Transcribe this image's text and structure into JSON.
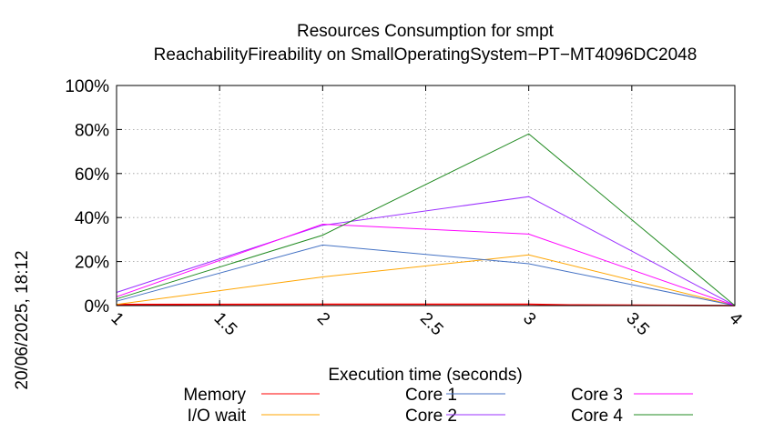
{
  "chart_data": {
    "type": "line",
    "title_line1": "Resources Consumption for smpt",
    "title_line2": "ReachabilityFireability on SmallOperatingSystem−PT−MT4096DC2048",
    "xlabel": "Execution time (seconds)",
    "side_label": "20/06/2025, 18:12",
    "xlim": [
      1,
      4
    ],
    "ylim": [
      0,
      100
    ],
    "x_ticks": [
      1,
      1.5,
      2,
      2.5,
      3,
      3.5,
      4
    ],
    "x_tick_labels": [
      "1",
      "1.5",
      "2",
      "2.5",
      "3",
      "3.5",
      "4"
    ],
    "y_ticks": [
      0,
      20,
      40,
      60,
      80,
      100
    ],
    "y_tick_labels": [
      "0%",
      "20%",
      "40%",
      "60%",
      "80%",
      "100%"
    ],
    "grid": true,
    "legend_position": "bottom",
    "series": [
      {
        "name": "Memory",
        "color": "#ff0000",
        "x": [
          1,
          2,
          3,
          3.2,
          4
        ],
        "y": [
          0.5,
          0.6,
          0.6,
          0.3,
          0
        ]
      },
      {
        "name": "I/O wait",
        "color": "#ffa500",
        "x": [
          1,
          2,
          3,
          4
        ],
        "y": [
          0.5,
          13,
          23,
          0
        ]
      },
      {
        "name": "Core 1",
        "color": "#4472c4",
        "x": [
          1,
          2,
          3,
          4
        ],
        "y": [
          2,
          27.5,
          19,
          0
        ]
      },
      {
        "name": "Core 2",
        "color": "#9b30ff",
        "x": [
          1,
          2,
          3,
          4
        ],
        "y": [
          6,
          36.5,
          49.5,
          0
        ]
      },
      {
        "name": "Core 3",
        "color": "#ff00ff",
        "x": [
          1,
          2,
          3,
          4
        ],
        "y": [
          4,
          37,
          32.5,
          0
        ]
      },
      {
        "name": "Core 4",
        "color": "#228b22",
        "x": [
          1,
          2,
          3,
          4
        ],
        "y": [
          3,
          32,
          78,
          0
        ]
      }
    ]
  }
}
